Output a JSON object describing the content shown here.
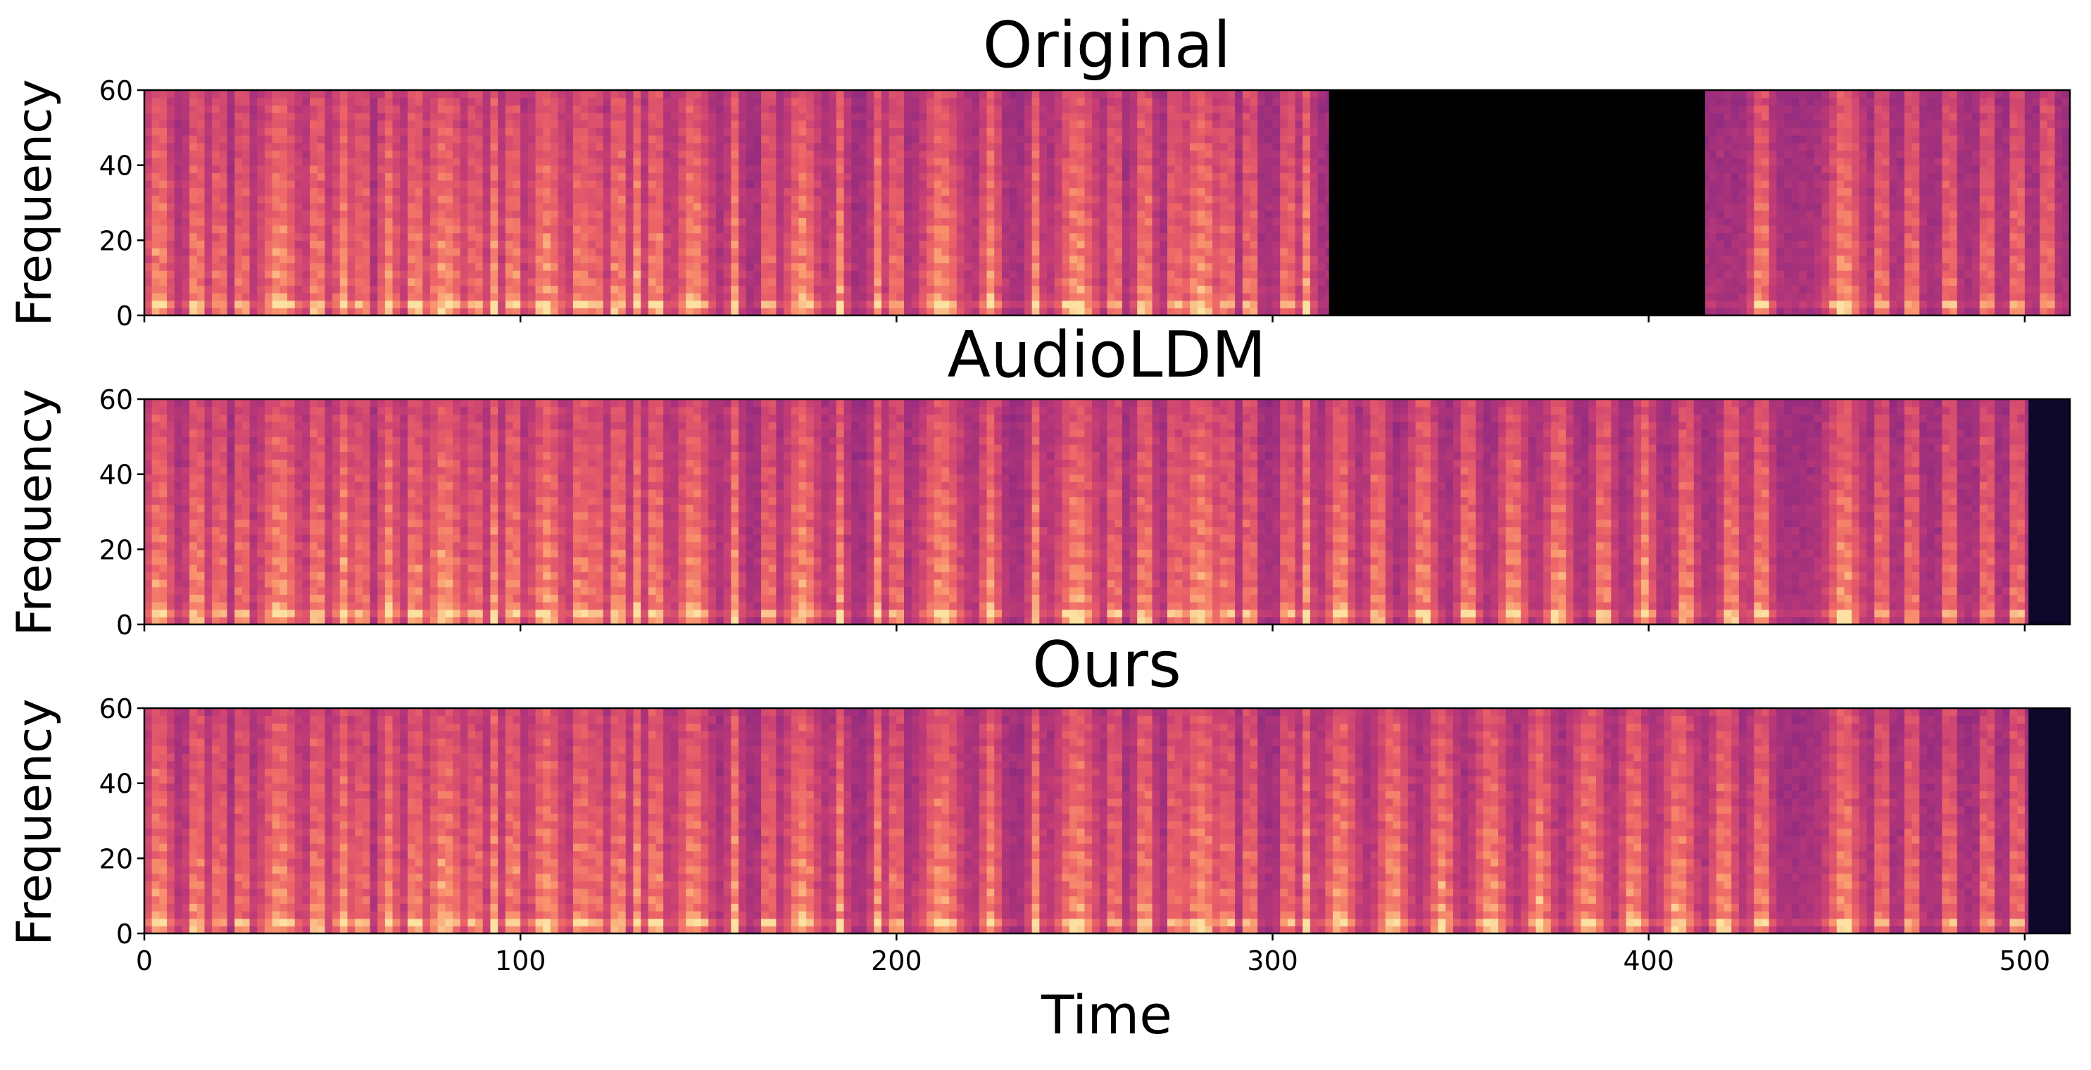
{
  "chart_data": [
    {
      "type": "heatmap",
      "title": "Original",
      "ylabel": "Frequency",
      "xlabel": "",
      "xlim": [
        0,
        512
      ],
      "ylim": [
        0,
        60
      ],
      "xticks": [
        0,
        100,
        200,
        300,
        400,
        500
      ],
      "yticks": [
        0,
        20,
        40,
        60
      ],
      "ytick_labels": [
        "0",
        "20",
        "40",
        "60"
      ],
      "masked_region": [
        315,
        415
      ],
      "dark_tail_start": null,
      "variant": "original"
    },
    {
      "type": "heatmap",
      "title": "AudioLDM",
      "ylabel": "Frequency",
      "xlabel": "",
      "xlim": [
        0,
        512
      ],
      "ylim": [
        0,
        60
      ],
      "xticks": [
        0,
        100,
        200,
        300,
        400,
        500
      ],
      "yticks": [
        0,
        20,
        40,
        60
      ],
      "ytick_labels": [
        "0",
        "20",
        "40",
        "60"
      ],
      "masked_region": null,
      "dark_tail_start": 501,
      "variant": "audioldm"
    },
    {
      "type": "heatmap",
      "title": "Ours",
      "ylabel": "Frequency",
      "xlabel": "Time",
      "xlim": [
        0,
        512
      ],
      "ylim": [
        0,
        60
      ],
      "xticks": [
        0,
        100,
        200,
        300,
        400,
        500
      ],
      "xtick_labels": [
        "0",
        "100",
        "200",
        "300",
        "400",
        "500"
      ],
      "yticks": [
        0,
        20,
        40,
        60
      ],
      "ytick_labels": [
        "0",
        "20",
        "40",
        "60"
      ],
      "masked_region": null,
      "dark_tail_start": 501,
      "variant": "ours"
    }
  ],
  "shared": {
    "bursts": [
      [
        4,
        4
      ],
      [
        14,
        3
      ],
      [
        20,
        2
      ],
      [
        26,
        2
      ],
      [
        36,
        6
      ],
      [
        46,
        3
      ],
      [
        53,
        3
      ],
      [
        58,
        2
      ],
      [
        65,
        3
      ],
      [
        72,
        3
      ],
      [
        80,
        6
      ],
      [
        88,
        2
      ],
      [
        93,
        2
      ],
      [
        98,
        3
      ],
      [
        107,
        5
      ],
      [
        116,
        3
      ],
      [
        120,
        2
      ],
      [
        126,
        3
      ],
      [
        131,
        2
      ],
      [
        136,
        3
      ],
      [
        146,
        5
      ],
      [
        157,
        2
      ],
      [
        166,
        2
      ],
      [
        175,
        5
      ],
      [
        185,
        2
      ],
      [
        195,
        2
      ],
      [
        200,
        2
      ],
      [
        212,
        6
      ],
      [
        225,
        3
      ],
      [
        237,
        2
      ],
      [
        248,
        6
      ],
      [
        258,
        2
      ],
      [
        266,
        3
      ],
      [
        274,
        2
      ],
      [
        281,
        6
      ],
      [
        288,
        2
      ],
      [
        294,
        2
      ],
      [
        304,
        2
      ],
      [
        309,
        2
      ]
    ],
    "tail_bursts": [
      [
        430,
        3
      ],
      [
        452,
        5
      ],
      [
        462,
        2
      ],
      [
        470,
        2
      ],
      [
        480,
        2
      ],
      [
        490,
        2
      ],
      [
        498,
        2
      ],
      [
        506,
        2
      ]
    ],
    "audioldm_gap_bursts": [
      [
        318,
        4
      ],
      [
        328,
        3
      ],
      [
        340,
        4
      ],
      [
        352,
        3
      ],
      [
        364,
        4
      ],
      [
        376,
        4
      ],
      [
        388,
        3
      ],
      [
        399,
        3
      ],
      [
        410,
        3
      ],
      [
        422,
        3
      ]
    ],
    "ours_gap_bursts": [
      [
        318,
        5
      ],
      [
        332,
        5
      ],
      [
        345,
        4
      ],
      [
        358,
        5
      ],
      [
        371,
        4
      ],
      [
        384,
        5
      ],
      [
        396,
        4
      ],
      [
        408,
        5
      ],
      [
        420,
        4
      ]
    ]
  }
}
